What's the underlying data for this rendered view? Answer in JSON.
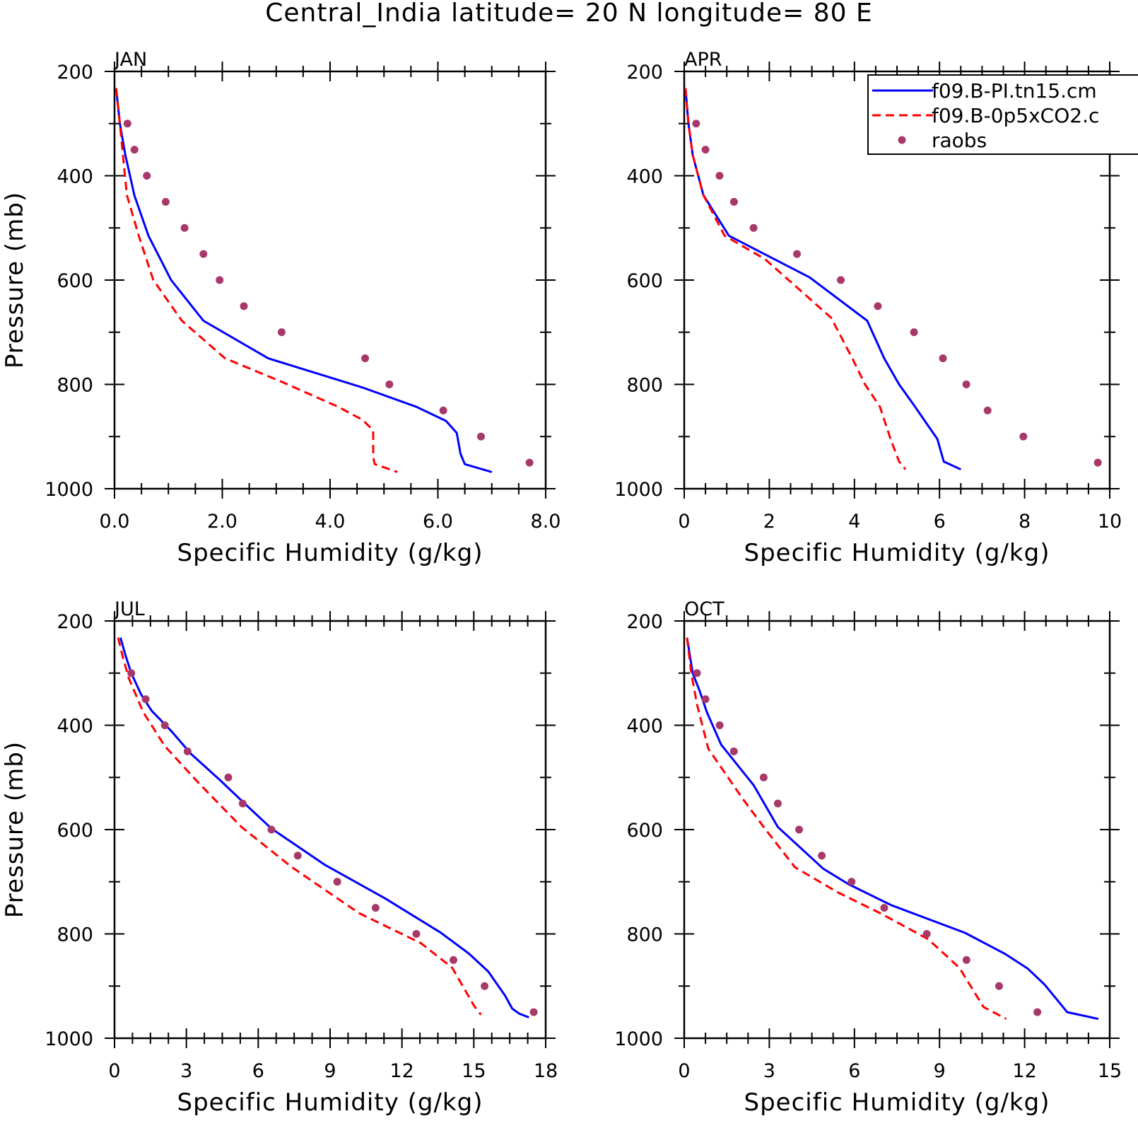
{
  "title": "Central_India  latitude= 20 N longitude= 80 E",
  "legend": {
    "placement": "top-right of APR panel",
    "entries": [
      {
        "label": "f09.B-PI.tn15.cm",
        "style": "solid",
        "color": "#0000ff"
      },
      {
        "label": "f09.B-0p5xCO2.c",
        "style": "dashed",
        "color": "#ff0000"
      },
      {
        "label": "raobs",
        "style": "dot",
        "color": "#a8386a"
      }
    ]
  },
  "colors": {
    "model_pi": "#0000ff",
    "model_0p5xco2": "#ff0000",
    "raobs": "#a8386a"
  },
  "chart_data": [
    {
      "type": "line",
      "panel": "JAN",
      "xlabel": "Specific Humidity (g/kg)",
      "ylabel": "Pressure (mb)",
      "xlim": [
        0,
        8
      ],
      "xticks": [
        0,
        2,
        4,
        6,
        8
      ],
      "xtick_labels": [
        "0.0",
        "2.0",
        "4.0",
        "6.0",
        "8.0"
      ],
      "ylim": [
        200,
        1000
      ],
      "y_reversed": true,
      "yticks": [
        200,
        400,
        600,
        800,
        1000
      ],
      "ytick_labels": [
        "200",
        "400",
        "600",
        "800",
        "1000"
      ],
      "series": [
        {
          "name": "f09.B-PI.tn15.cm",
          "kind": "solid",
          "x": [
            0.03,
            0.1,
            0.2,
            0.37,
            0.63,
            1.05,
            1.65,
            2.85,
            4.6,
            5.6,
            6.15,
            6.35,
            6.42,
            6.5,
            7.0
          ],
          "y": [
            232,
            300,
            360,
            438,
            515,
            600,
            678,
            750,
            806,
            843,
            870,
            893,
            933,
            953,
            968
          ]
        },
        {
          "name": "f09.B-0p5xCO2.c",
          "kind": "dashed",
          "x": [
            0.03,
            0.1,
            0.23,
            0.45,
            0.72,
            1.25,
            2.05,
            3.1,
            4.15,
            4.6,
            4.8,
            4.8,
            4.83,
            5.25
          ],
          "y": [
            232,
            300,
            437,
            515,
            600,
            678,
            750,
            795,
            843,
            868,
            888,
            940,
            953,
            968
          ]
        },
        {
          "name": "raobs",
          "kind": "dot",
          "x": [
            0.24,
            0.37,
            0.6,
            0.95,
            1.3,
            1.65,
            1.95,
            2.4,
            3.1,
            4.65,
            5.1,
            6.1,
            6.8,
            7.7
          ],
          "y": [
            300,
            350,
            400,
            450,
            500,
            550,
            600,
            650,
            700,
            750,
            800,
            850,
            900,
            950
          ]
        }
      ]
    },
    {
      "type": "line",
      "panel": "APR",
      "xlabel": "Specific Humidity (g/kg)",
      "ylabel": "",
      "xlim": [
        0,
        10
      ],
      "xticks": [
        0,
        2,
        4,
        6,
        8,
        10
      ],
      "xtick_labels": [
        "0",
        "2",
        "4",
        "6",
        "8",
        "10"
      ],
      "ylim": [
        200,
        1000
      ],
      "y_reversed": true,
      "yticks": [
        200,
        400,
        600,
        800,
        1000
      ],
      "ytick_labels": [
        "200",
        "400",
        "600",
        "800",
        "1000"
      ],
      "series": [
        {
          "name": "f09.B-PI.tn15.cm",
          "kind": "solid",
          "x": [
            0.03,
            0.1,
            0.2,
            0.45,
            1.05,
            2.95,
            4.3,
            4.7,
            5.05,
            5.4,
            5.95,
            6.1,
            6.5
          ],
          "y": [
            232,
            300,
            360,
            437,
            515,
            595,
            678,
            750,
            800,
            840,
            905,
            948,
            963
          ]
        },
        {
          "name": "f09.B-0p5xCO2.c",
          "kind": "dashed",
          "x": [
            0.03,
            0.1,
            0.2,
            0.45,
            0.95,
            1.9,
            3.45,
            3.95,
            4.25,
            4.6,
            4.85,
            5.05,
            5.2
          ],
          "y": [
            232,
            300,
            360,
            437,
            515,
            560,
            672,
            750,
            800,
            843,
            905,
            948,
            963
          ]
        },
        {
          "name": "raobs",
          "kind": "dot",
          "x": [
            0.28,
            0.5,
            0.83,
            1.17,
            1.63,
            2.65,
            3.68,
            4.55,
            5.4,
            6.08,
            6.63,
            7.13,
            7.97,
            9.72
          ],
          "y": [
            300,
            350,
            400,
            450,
            500,
            550,
            600,
            650,
            700,
            750,
            800,
            850,
            900,
            950
          ]
        }
      ]
    },
    {
      "type": "line",
      "panel": "JUL",
      "xlabel": "Specific Humidity (g/kg)",
      "ylabel": "Pressure (mb)",
      "xlim": [
        0,
        18
      ],
      "xticks": [
        0,
        3,
        6,
        9,
        12,
        15,
        18
      ],
      "xtick_labels": [
        "0",
        "3",
        "6",
        "9",
        "12",
        "15",
        "18"
      ],
      "ylim": [
        200,
        1000
      ],
      "y_reversed": true,
      "yticks": [
        200,
        400,
        600,
        800,
        1000
      ],
      "ytick_labels": [
        "200",
        "400",
        "600",
        "800",
        "1000"
      ],
      "series": [
        {
          "name": "f09.B-PI.tn15.cm",
          "kind": "solid",
          "x": [
            0.25,
            0.45,
            0.7,
            1.1,
            1.55,
            2.35,
            3.2,
            4.4,
            5.5,
            6.55,
            8.8,
            11.3,
            13.6,
            14.8,
            15.6,
            16.3,
            16.6,
            16.9,
            17.3
          ],
          "y": [
            232,
            265,
            300,
            340,
            372,
            410,
            455,
            505,
            553,
            598,
            668,
            732,
            797,
            838,
            872,
            918,
            943,
            953,
            960
          ]
        },
        {
          "name": "f09.B-0p5xCO2.c",
          "kind": "dashed",
          "x": [
            0.15,
            0.35,
            0.6,
            1.2,
            2.1,
            3.5,
            5.3,
            7.4,
            10.2,
            12.8,
            14.1,
            14.6,
            15.0,
            15.3
          ],
          "y": [
            232,
            270,
            310,
            375,
            440,
            510,
            595,
            672,
            760,
            818,
            865,
            905,
            937,
            955
          ]
        },
        {
          "name": "raobs",
          "kind": "dot",
          "x": [
            0.7,
            1.3,
            2.1,
            3.05,
            4.75,
            5.35,
            6.55,
            7.65,
            9.3,
            10.9,
            12.6,
            14.15,
            15.45,
            17.5
          ],
          "y": [
            300,
            350,
            400,
            450,
            500,
            550,
            600,
            650,
            700,
            750,
            800,
            850,
            900,
            950
          ]
        }
      ]
    },
    {
      "type": "line",
      "panel": "OCT",
      "xlabel": "Specific Humidity (g/kg)",
      "ylabel": "",
      "xlim": [
        0,
        15
      ],
      "xticks": [
        0,
        3,
        6,
        9,
        12,
        15
      ],
      "xtick_labels": [
        "0",
        "3",
        "6",
        "9",
        "12",
        "15"
      ],
      "ylim": [
        200,
        1000
      ],
      "y_reversed": true,
      "yticks": [
        200,
        400,
        600,
        800,
        1000
      ],
      "ytick_labels": [
        "200",
        "400",
        "600",
        "800",
        "1000"
      ],
      "series": [
        {
          "name": "f09.B-PI.tn15.cm",
          "kind": "solid",
          "x": [
            0.1,
            0.3,
            0.55,
            0.8,
            1.3,
            2.45,
            3.3,
            4.9,
            5.8,
            7.3,
            9.9,
            11.3,
            12.1,
            12.7,
            13.2,
            13.5,
            14.6
          ],
          "y": [
            232,
            300,
            335,
            375,
            437,
            515,
            595,
            675,
            705,
            745,
            798,
            838,
            866,
            897,
            930,
            950,
            963
          ]
        },
        {
          "name": "f09.B-0p5xCO2.c",
          "kind": "dashed",
          "x": [
            0.1,
            0.25,
            0.45,
            0.85,
            2.05,
            2.8,
            3.9,
            5.4,
            6.9,
            8.6,
            9.7,
            10.55,
            11.35
          ],
          "y": [
            232,
            300,
            360,
            445,
            540,
            595,
            672,
            720,
            760,
            810,
            865,
            940,
            963
          ]
        },
        {
          "name": "raobs",
          "kind": "dot",
          "x": [
            0.45,
            0.75,
            1.25,
            1.75,
            2.8,
            3.3,
            4.05,
            4.85,
            5.9,
            7.05,
            8.55,
            9.95,
            11.1,
            12.45
          ],
          "y": [
            300,
            350,
            400,
            450,
            500,
            550,
            600,
            650,
            700,
            750,
            800,
            850,
            900,
            950
          ]
        }
      ]
    }
  ]
}
